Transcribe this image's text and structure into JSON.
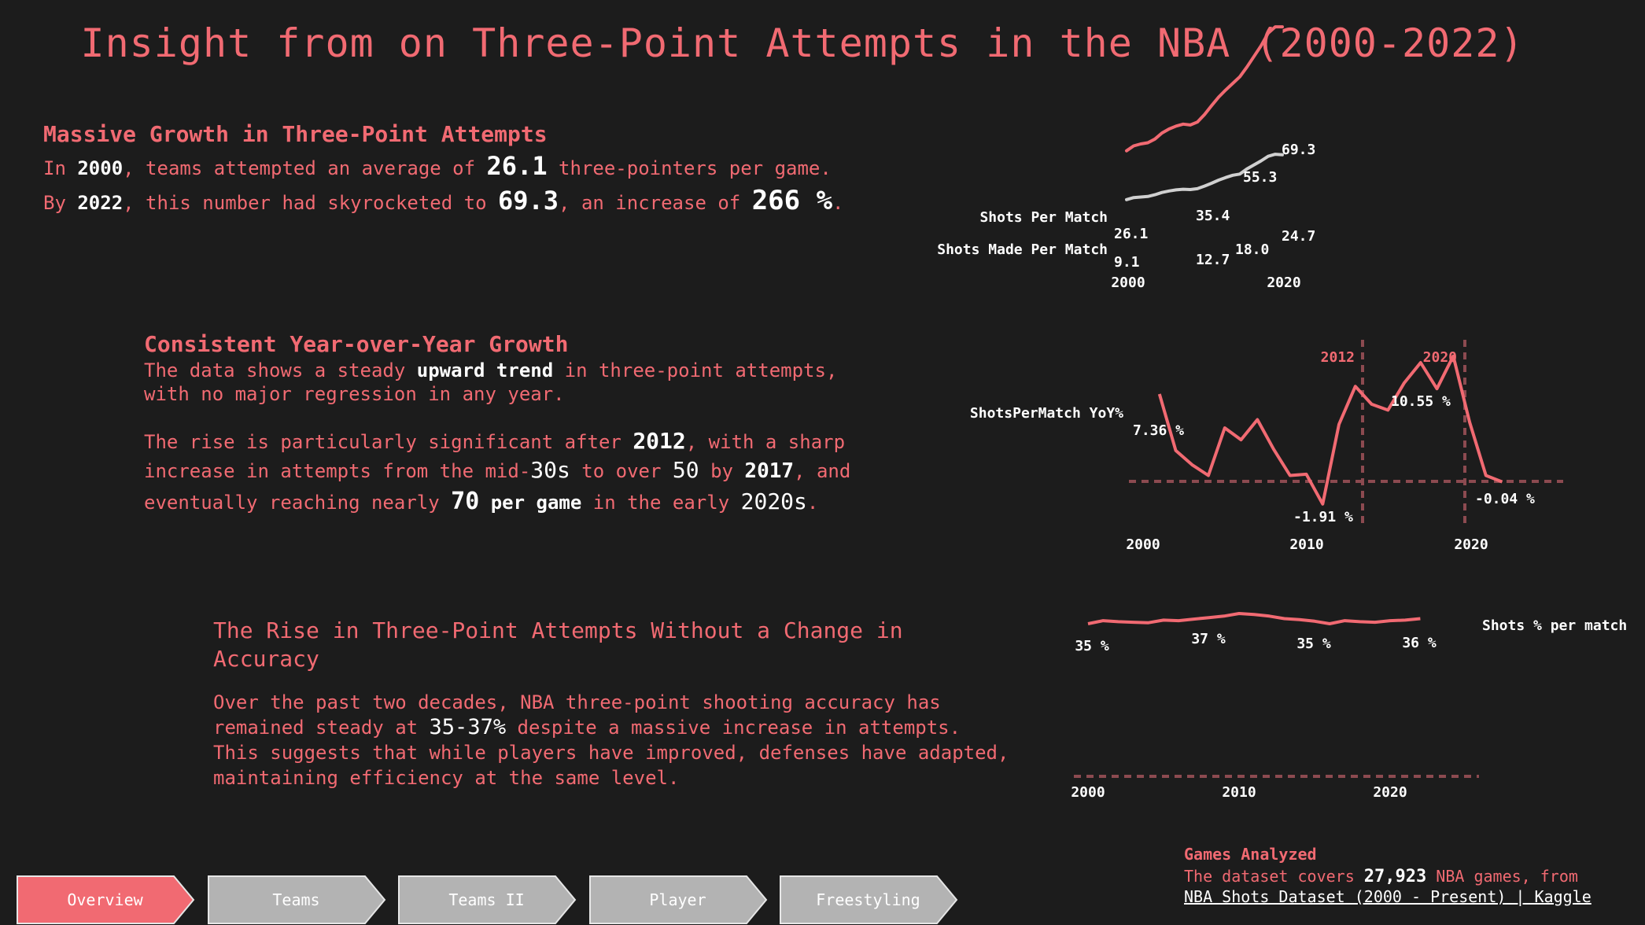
{
  "title": "Insight from on Three-Point Attempts in the NBA (2000-2022)",
  "section1": {
    "heading": "Massive Growth in Three-Point Attempts",
    "l1_a": "In ",
    "l1_year": "2000",
    "l1_b": ", teams attempted an average of ",
    "l1_val": "26.1",
    "l1_c": " three-pointers per game.",
    "l2_a": "By ",
    "l2_year": "2022",
    "l2_b": ", this number had skyrocketed to ",
    "l2_val": "69.3",
    "l2_c": ", an increase of ",
    "l2_pct": "266 %",
    "l2_d": "."
  },
  "section2": {
    "heading": "Consistent Year-over-Year Growth",
    "l1_a": "The data shows a steady ",
    "l1_bold": "upward trend",
    "l1_b": " in three-point attempts,",
    "l2": "with no major regression in any year.",
    "l3_a": "The rise is particularly significant after ",
    "l3_year": "2012",
    "l3_b": ", with a sharp",
    "l4_a": "increase in attempts from the mid-",
    "l4_num": "30s",
    "l4_b": " to over ",
    "l4_num2": "50",
    "l4_c": " by ",
    "l4_year": "2017",
    "l4_d": ", and",
    "l5_a": "eventually reaching nearly ",
    "l5_num": "70",
    "l5_b": " per game",
    "l5_c": " in the early ",
    "l5_d": "2020s",
    "l5_e": "."
  },
  "section3": {
    "heading_l1": "The Rise in Three-Point Attempts Without a Change in",
    "heading_l2": "Accuracy",
    "l1": "Over the past two decades, NBA three-point shooting accuracy has",
    "l2_a": "remained steady at ",
    "l2_num": "35-37%",
    "l2_b": " despite a massive increase in attempts.",
    "l3": "This suggests that while players have improved, defenses have adapted,",
    "l4": "maintaining efficiency at the same level."
  },
  "tabs": [
    {
      "label": "Overview",
      "active": true
    },
    {
      "label": "Teams",
      "active": false
    },
    {
      "label": "Teams II",
      "active": false
    },
    {
      "label": "Player",
      "active": false
    },
    {
      "label": "Freestyling",
      "active": false
    }
  ],
  "footer": {
    "title": "Games Analyzed",
    "line_a": "The dataset covers ",
    "games": "27,923",
    "line_b": " NBA games, from",
    "link": "NBA Shots Dataset (2000 - Present) | Kaggle"
  },
  "colors": {
    "background": "#1c1c1c",
    "accent": "#f16a72",
    "muted_tab": "#b3b3b3",
    "dashed": "#8c4a50"
  },
  "chart_data": [
    {
      "type": "line",
      "x": [
        2000,
        2001,
        2002,
        2003,
        2004,
        2005,
        2006,
        2007,
        2008,
        2009,
        2010,
        2011,
        2012,
        2013,
        2014,
        2015,
        2016,
        2017,
        2018,
        2019,
        2020,
        2021,
        2022
      ],
      "series": [
        {
          "name": "Shots Per Match",
          "color": "#f16a72",
          "values": [
            26.1,
            27.8,
            28.5,
            28.9,
            30.2,
            32.3,
            33.7,
            34.7,
            35.4,
            35.1,
            36.1,
            38.7,
            41.8,
            44.8,
            47.3,
            49.6,
            51.9,
            55.3,
            59.0,
            62.7,
            67.1,
            69.3,
            69.3
          ]
        },
        {
          "name": "Shots Made Per Match",
          "color": "#d0d0d0",
          "values": [
            9.1,
            9.8,
            10.0,
            10.2,
            10.8,
            11.6,
            12.1,
            12.5,
            12.7,
            12.6,
            12.9,
            13.8,
            14.8,
            15.9,
            16.8,
            17.6,
            18.0,
            19.8,
            21.2,
            22.6,
            24.2,
            24.9,
            24.7
          ]
        }
      ],
      "x_ticks": [
        "2000",
        "2020"
      ],
      "annotations": [
        "26.1",
        "35.4",
        "55.3",
        "69.3",
        "9.1",
        "12.7",
        "18.0",
        "24.7"
      ]
    },
    {
      "type": "line",
      "series": [
        {
          "name": "ShotsPerMatch YoY%",
          "color": "#f16a72",
          "x": [
            2001,
            2002,
            2003,
            2004,
            2005,
            2006,
            2007,
            2008,
            2009,
            2010,
            2011,
            2012,
            2013,
            2014,
            2015,
            2016,
            2017,
            2018,
            2019,
            2020,
            2021,
            2022
          ],
          "values": [
            7.36,
            2.6,
            1.4,
            0.5,
            4.5,
            3.5,
            5.2,
            2.7,
            0.5,
            0.6,
            -1.91,
            4.8,
            8.0,
            6.5,
            6.0,
            8.3,
            10.0,
            7.8,
            10.55,
            5.0,
            0.5,
            -0.04
          ]
        }
      ],
      "x_ticks": [
        "2000",
        "2010",
        "2020"
      ],
      "reference_years": [
        "2012",
        "2020"
      ],
      "annotations": [
        "7.36 %",
        "-1.91 %",
        "10.55 %",
        "-0.04 %"
      ]
    },
    {
      "type": "line",
      "series": [
        {
          "name": "Shots % per match",
          "color": "#f16a72",
          "x": [
            2000,
            2001,
            2002,
            2003,
            2004,
            2005,
            2006,
            2007,
            2008,
            2009,
            2010,
            2011,
            2012,
            2013,
            2014,
            2015,
            2016,
            2017,
            2018,
            2019,
            2020,
            2021,
            2022
          ],
          "values": [
            35.0,
            35.6,
            35.4,
            35.3,
            35.2,
            35.7,
            35.6,
            35.9,
            36.2,
            36.5,
            37.0,
            36.8,
            36.5,
            36.0,
            35.8,
            35.5,
            35.0,
            35.6,
            35.4,
            35.3,
            35.6,
            35.7,
            36.0
          ]
        }
      ],
      "x_ticks": [
        "2000",
        "2010",
        "2020"
      ],
      "annotations": [
        "35 %",
        "37 %",
        "35 %",
        "36 %"
      ]
    }
  ]
}
